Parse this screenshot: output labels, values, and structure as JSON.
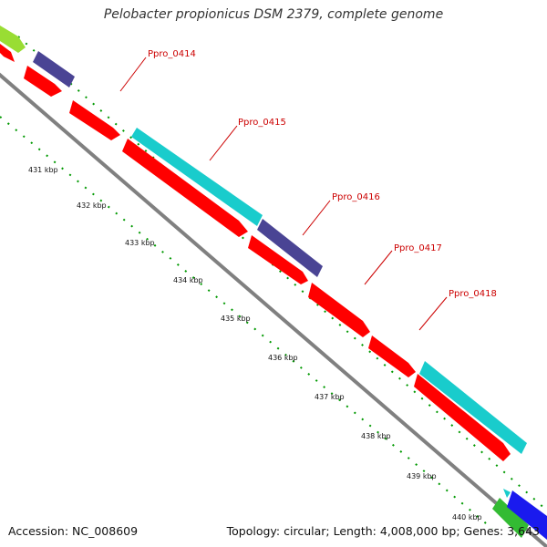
{
  "title": "Pelobacter propionicus DSM 2379, complete genome",
  "footer": {
    "accession": "Accession: NC_008609",
    "summary": "Topology: circular; Length: 4,008,000 bp; Genes: 3,643"
  },
  "colors": {
    "backbone": "#808080",
    "forward_cds": "#ff0000",
    "reverse_teal": "#19cccc",
    "reverse_navy": "#4a4494",
    "lime": "#99dd33",
    "green": "#33bb33",
    "blue": "#1a1aee",
    "tick_green": "#009900",
    "label_red": "#cc0000"
  },
  "scale_ticks": [
    "431 kbp",
    "432 kbp",
    "433 kbp",
    "434 kbp",
    "435 kbp",
    "436 kbp",
    "437 kbp",
    "438 kbp",
    "439 kbp",
    "440 kbp"
  ],
  "gene_labels": [
    "Ppro_0414",
    "Ppro_0415",
    "Ppro_0416",
    "Ppro_0417",
    "Ppro_0418"
  ]
}
